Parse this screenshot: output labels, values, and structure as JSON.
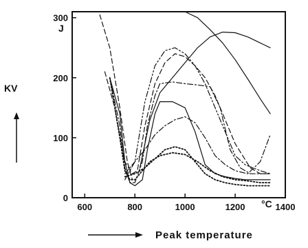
{
  "chart_data": {
    "type": "line",
    "xlabel": "Peak temperature",
    "ylabel": "KV",
    "y_unit": "J",
    "x_unit": "°C",
    "xlim": [
      550,
      1400
    ],
    "ylim": [
      0,
      310
    ],
    "x_ticks": [
      600,
      800,
      1000,
      1200,
      1400
    ],
    "x_tick_labels": [
      "600",
      "800",
      "1000",
      "1200",
      "1400"
    ],
    "y_ticks": [
      0,
      100,
      200,
      300
    ],
    "y_tick_labels": [
      "0",
      "100",
      "200",
      "300"
    ],
    "grid": false,
    "legend": "none",
    "series": [
      {
        "dash": "solid",
        "x": [
          860,
          900,
          950,
          1000,
          1050,
          1100,
          1150,
          1200,
          1250,
          1300,
          1340
        ],
        "y": [
          310,
          310,
          310,
          310,
          300,
          280,
          258,
          230,
          198,
          165,
          140
        ]
      },
      {
        "dash": "solid",
        "x": [
          820,
          860,
          900,
          950,
          1000,
          1050,
          1100,
          1150,
          1200,
          1250,
          1300,
          1340
        ],
        "y": [
          50,
          130,
          175,
          200,
          225,
          250,
          268,
          276,
          275,
          268,
          258,
          250
        ]
      },
      {
        "dash": "solid",
        "x": [
          700,
          740,
          760,
          780,
          800,
          830,
          850,
          880,
          900,
          950,
          1000,
          1040,
          1080,
          1120,
          1160,
          1200,
          1240,
          1280,
          1340
        ],
        "y": [
          200,
          140,
          60,
          25,
          20,
          30,
          80,
          140,
          160,
          160,
          150,
          110,
          55,
          40,
          35,
          32,
          30,
          30,
          30
        ]
      },
      {
        "dash": "dashdot",
        "x": [
          700,
          740,
          760,
          780,
          800,
          830,
          850,
          880,
          900,
          950,
          1000,
          1050,
          1100,
          1140,
          1180,
          1220,
          1260,
          1300,
          1340
        ],
        "y": [
          200,
          120,
          50,
          25,
          25,
          60,
          120,
          170,
          190,
          193,
          190,
          188,
          185,
          150,
          80,
          50,
          40,
          40,
          40
        ]
      },
      {
        "dash": "dotted",
        "x": [
          700,
          740,
          760,
          780,
          800,
          830,
          860,
          900,
          950,
          1000,
          1050,
          1100,
          1150,
          1200,
          1250,
          1300,
          1340
        ],
        "y": [
          200,
          100,
          45,
          30,
          30,
          45,
          60,
          70,
          75,
          72,
          60,
          45,
          35,
          30,
          28,
          25,
          25
        ]
      },
      {
        "dash": "dash",
        "x": [
          680,
          720,
          760,
          790,
          810,
          840,
          880,
          920,
          960,
          1000,
          1040,
          1080,
          1120,
          1160,
          1200,
          1260,
          1300,
          1340
        ],
        "y": [
          210,
          150,
          60,
          40,
          45,
          120,
          190,
          225,
          240,
          235,
          220,
          200,
          170,
          130,
          90,
          50,
          40,
          40
        ]
      },
      {
        "dash": "dashdotdot",
        "x": [
          760,
          800,
          840,
          880,
          920,
          960,
          1000,
          1040,
          1080,
          1120,
          1160,
          1200,
          1240,
          1300,
          1340
        ],
        "y": [
          30,
          60,
          160,
          220,
          245,
          250,
          240,
          220,
          190,
          150,
          110,
          70,
          55,
          45,
          40
        ]
      },
      {
        "dash": "dashdot",
        "x": [
          760,
          800,
          840,
          880,
          920,
          960,
          1000,
          1040,
          1080,
          1120,
          1160,
          1200,
          1250,
          1300,
          1340
        ],
        "y": [
          40,
          60,
          80,
          105,
          120,
          130,
          135,
          125,
          100,
          70,
          55,
          45,
          40,
          60,
          105
        ]
      },
      {
        "dash": "dash",
        "x": [
          660,
          700,
          740,
          770,
          790
        ],
        "y": [
          305,
          250,
          150,
          60,
          30
        ]
      },
      {
        "dash": "dotted",
        "x": [
          760,
          800,
          840,
          880,
          920,
          960,
          1000,
          1040,
          1080,
          1120,
          1160,
          1200,
          1250,
          1300,
          1340
        ],
        "y": [
          35,
          40,
          50,
          65,
          80,
          85,
          80,
          60,
          40,
          30,
          25,
          22,
          20,
          20,
          20
        ]
      }
    ]
  }
}
